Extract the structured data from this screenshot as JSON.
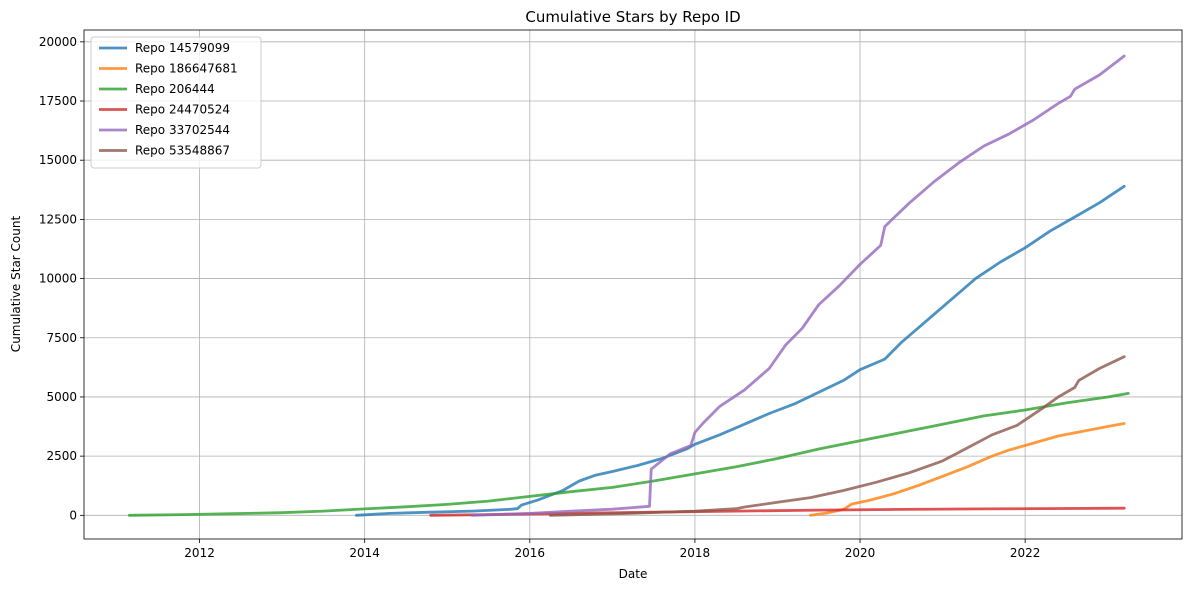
{
  "chart_data": {
    "type": "line",
    "title": "Cumulative Stars by Repo ID",
    "xlabel": "Date",
    "ylabel": "Cumulative Star Count",
    "xlim": [
      2010.6,
      2023.9
    ],
    "ylim": [
      -1000,
      20500
    ],
    "x_ticks": [
      2012,
      2014,
      2016,
      2018,
      2020,
      2022
    ],
    "y_ticks": [
      0,
      2500,
      5000,
      7500,
      10000,
      12500,
      15000,
      17500,
      20000
    ],
    "grid": true,
    "legend_position": "top-left",
    "series": [
      {
        "name": "Repo 14579099",
        "color": "#1f77b4",
        "points": [
          [
            2013.9,
            0
          ],
          [
            2014.3,
            80
          ],
          [
            2014.8,
            130
          ],
          [
            2015.3,
            180
          ],
          [
            2015.75,
            250
          ],
          [
            2015.85,
            280
          ],
          [
            2015.9,
            430
          ],
          [
            2016.1,
            650
          ],
          [
            2016.4,
            1050
          ],
          [
            2016.6,
            1450
          ],
          [
            2016.8,
            1700
          ],
          [
            2017.0,
            1850
          ],
          [
            2017.3,
            2100
          ],
          [
            2017.6,
            2400
          ],
          [
            2017.9,
            2800
          ],
          [
            2018.0,
            3000
          ],
          [
            2018.3,
            3400
          ],
          [
            2018.6,
            3850
          ],
          [
            2018.9,
            4300
          ],
          [
            2019.2,
            4700
          ],
          [
            2019.5,
            5200
          ],
          [
            2019.8,
            5700
          ],
          [
            2020.0,
            6150
          ],
          [
            2020.3,
            6600
          ],
          [
            2020.5,
            7300
          ],
          [
            2020.8,
            8200
          ],
          [
            2021.1,
            9100
          ],
          [
            2021.4,
            10000
          ],
          [
            2021.7,
            10700
          ],
          [
            2022.0,
            11300
          ],
          [
            2022.3,
            12000
          ],
          [
            2022.6,
            12600
          ],
          [
            2022.9,
            13200
          ],
          [
            2023.2,
            13900
          ]
        ]
      },
      {
        "name": "Repo 186647681",
        "color": "#ff7f0e",
        "points": [
          [
            2019.4,
            0
          ],
          [
            2019.6,
            100
          ],
          [
            2019.8,
            250
          ],
          [
            2019.9,
            480
          ],
          [
            2020.1,
            620
          ],
          [
            2020.4,
            900
          ],
          [
            2020.7,
            1250
          ],
          [
            2021.0,
            1650
          ],
          [
            2021.3,
            2050
          ],
          [
            2021.6,
            2500
          ],
          [
            2021.8,
            2750
          ],
          [
            2022.1,
            3050
          ],
          [
            2022.4,
            3350
          ],
          [
            2022.7,
            3550
          ],
          [
            2023.0,
            3750
          ],
          [
            2023.2,
            3880
          ]
        ]
      },
      {
        "name": "Repo 206444",
        "color": "#2ca02c",
        "points": [
          [
            2011.15,
            0
          ],
          [
            2011.8,
            30
          ],
          [
            2012.4,
            70
          ],
          [
            2013.0,
            110
          ],
          [
            2013.5,
            180
          ],
          [
            2014.0,
            270
          ],
          [
            2014.5,
            360
          ],
          [
            2015.0,
            460
          ],
          [
            2015.5,
            600
          ],
          [
            2016.0,
            800
          ],
          [
            2016.5,
            1000
          ],
          [
            2017.0,
            1180
          ],
          [
            2017.5,
            1450
          ],
          [
            2018.0,
            1750
          ],
          [
            2018.5,
            2050
          ],
          [
            2019.0,
            2400
          ],
          [
            2019.5,
            2800
          ],
          [
            2020.0,
            3150
          ],
          [
            2020.5,
            3500
          ],
          [
            2021.0,
            3850
          ],
          [
            2021.5,
            4200
          ],
          [
            2022.0,
            4450
          ],
          [
            2022.5,
            4750
          ],
          [
            2023.0,
            5000
          ],
          [
            2023.25,
            5150
          ]
        ]
      },
      {
        "name": "Repo 24470524",
        "color": "#d62728",
        "points": [
          [
            2014.8,
            0
          ],
          [
            2015.5,
            30
          ],
          [
            2016.5,
            80
          ],
          [
            2017.5,
            130
          ],
          [
            2018.5,
            180
          ],
          [
            2019.5,
            220
          ],
          [
            2020.5,
            250
          ],
          [
            2021.5,
            270
          ],
          [
            2022.5,
            290
          ],
          [
            2023.2,
            300
          ]
        ]
      },
      {
        "name": "Repo 33702544",
        "color": "#9467bd",
        "points": [
          [
            2015.3,
            0
          ],
          [
            2016.0,
            80
          ],
          [
            2016.5,
            180
          ],
          [
            2017.0,
            260
          ],
          [
            2017.45,
            380
          ],
          [
            2017.47,
            1950
          ],
          [
            2017.7,
            2600
          ],
          [
            2017.95,
            2950
          ],
          [
            2018.0,
            3500
          ],
          [
            2018.1,
            3900
          ],
          [
            2018.3,
            4600
          ],
          [
            2018.6,
            5300
          ],
          [
            2018.9,
            6200
          ],
          [
            2019.1,
            7200
          ],
          [
            2019.3,
            7900
          ],
          [
            2019.5,
            8900
          ],
          [
            2019.75,
            9700
          ],
          [
            2020.0,
            10600
          ],
          [
            2020.25,
            11400
          ],
          [
            2020.3,
            12200
          ],
          [
            2020.6,
            13200
          ],
          [
            2020.9,
            14100
          ],
          [
            2021.2,
            14900
          ],
          [
            2021.5,
            15600
          ],
          [
            2021.8,
            16100
          ],
          [
            2022.1,
            16700
          ],
          [
            2022.4,
            17400
          ],
          [
            2022.55,
            17700
          ],
          [
            2022.6,
            18000
          ],
          [
            2022.9,
            18600
          ],
          [
            2023.2,
            19400
          ]
        ]
      },
      {
        "name": "Repo 53548867",
        "color": "#8c564b",
        "points": [
          [
            2016.25,
            0
          ],
          [
            2017.0,
            60
          ],
          [
            2017.5,
            120
          ],
          [
            2018.0,
            180
          ],
          [
            2018.5,
            280
          ],
          [
            2018.6,
            350
          ],
          [
            2019.0,
            550
          ],
          [
            2019.4,
            750
          ],
          [
            2019.8,
            1050
          ],
          [
            2020.2,
            1400
          ],
          [
            2020.6,
            1800
          ],
          [
            2021.0,
            2300
          ],
          [
            2021.3,
            2850
          ],
          [
            2021.6,
            3400
          ],
          [
            2021.9,
            3800
          ],
          [
            2022.2,
            4500
          ],
          [
            2022.4,
            5000
          ],
          [
            2022.6,
            5400
          ],
          [
            2022.65,
            5700
          ],
          [
            2022.9,
            6200
          ],
          [
            2023.2,
            6700
          ]
        ]
      }
    ]
  }
}
